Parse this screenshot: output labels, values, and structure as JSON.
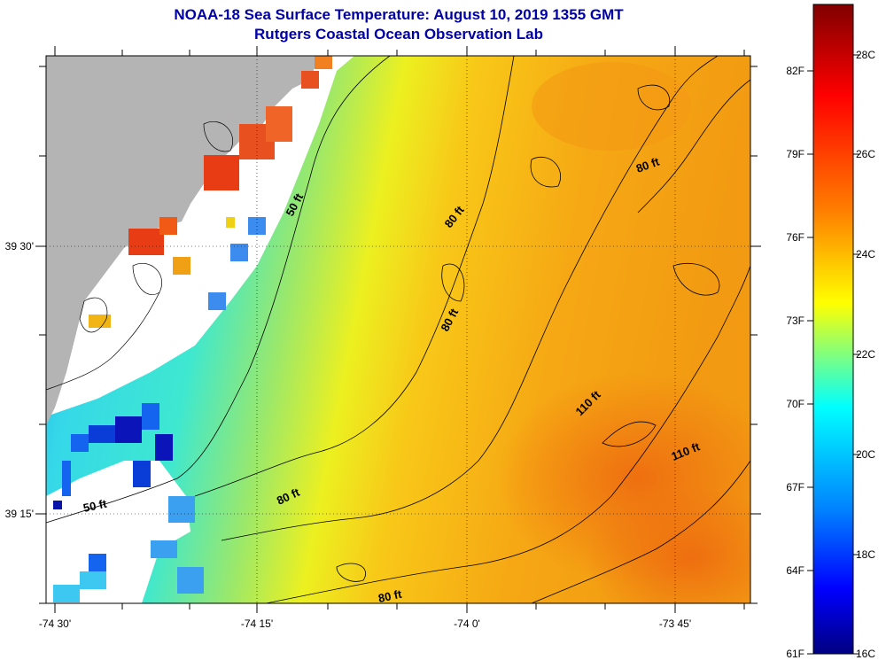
{
  "title": {
    "line1": "NOAA-18 Sea Surface Temperature:  August 10, 2019 1355 GMT",
    "line2": "Rutgers Coastal Ocean Observation Lab"
  },
  "axes": {
    "lon_ticks": [
      "-74 30'",
      "-74 15'",
      "-74 0'",
      "-73 45'"
    ],
    "lat_ticks": [
      "39 30'",
      "39 15'"
    ]
  },
  "contour_labels": [
    "50 ft",
    "80 ft",
    "80 ft",
    "80 ft",
    "50 ft",
    "80 ft",
    "80 ft",
    "110 ft",
    "110 ft"
  ],
  "colorbar": {
    "fahrenheit": [
      "82F",
      "79F",
      "76F",
      "73F",
      "70F",
      "67F",
      "64F",
      "61F"
    ],
    "celsius": [
      "28C",
      "26C",
      "24C",
      "22C",
      "20C",
      "18C",
      "16C"
    ],
    "colors": [
      "#800000",
      "#ff0000",
      "#ff8000",
      "#ffff00",
      "#00ffff",
      "#0080ff",
      "#0000ff",
      "#000080"
    ]
  },
  "colors": {
    "land": "#b4b4b4",
    "no_data": "#ffffff",
    "title": "#0000a8"
  }
}
